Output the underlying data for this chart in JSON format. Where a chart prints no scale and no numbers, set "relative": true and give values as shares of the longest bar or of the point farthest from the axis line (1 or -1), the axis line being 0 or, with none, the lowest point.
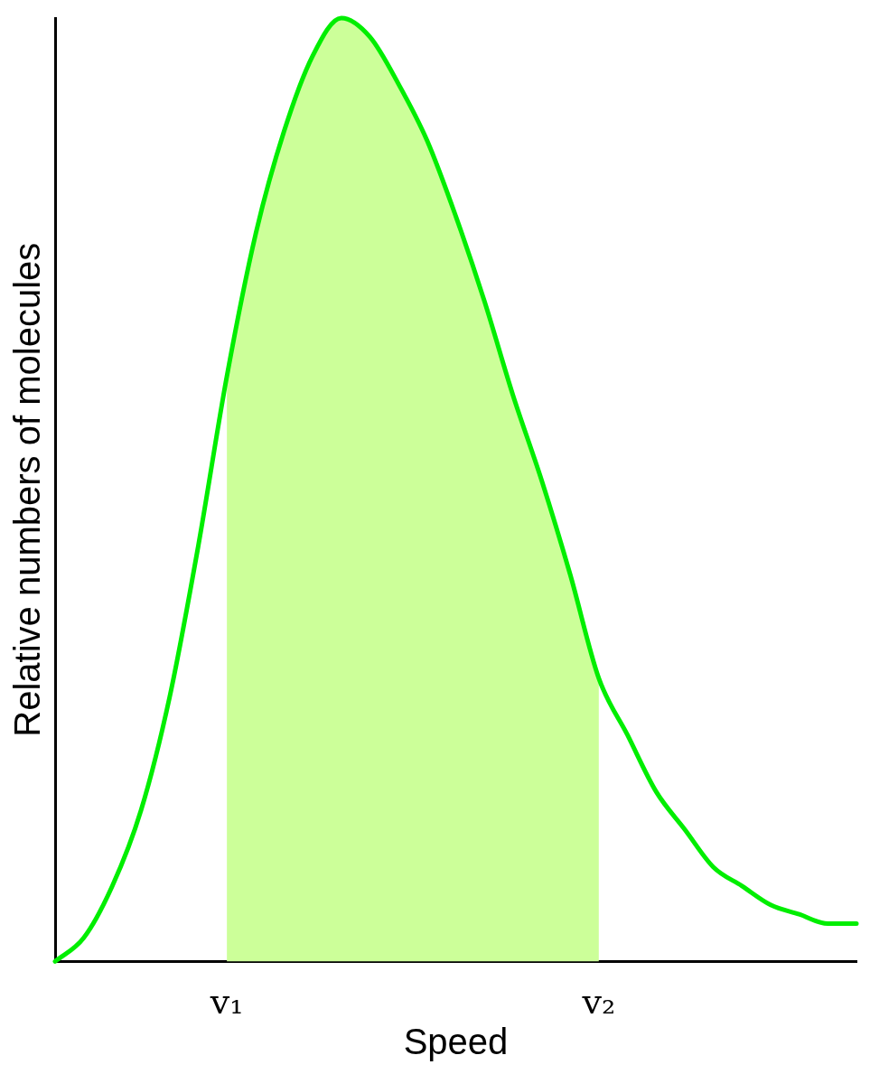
{
  "chart_data": {
    "type": "line",
    "relative": true,
    "xlabel": "Speed",
    "ylabel": "Relative numbers of molecules",
    "categories": [
      null,
      null,
      null,
      null,
      null,
      null,
      "v₁",
      null,
      null,
      null,
      null,
      null,
      null,
      null,
      null,
      null,
      null,
      null,
      null,
      "v₂",
      null,
      null,
      null,
      null,
      null,
      null,
      null,
      null,
      null
    ],
    "series": [
      {
        "type": "area",
        "color": "#ccff99",
        "values": [
          null,
          null,
          null,
          null,
          null,
          null,
          0.62,
          0.77,
          0.88,
          0.96,
          1,
          0.98,
          0.93,
          0.87,
          0.79,
          0.7,
          0.6,
          0.51,
          0.41,
          0.3,
          null,
          null,
          null,
          null,
          null,
          null,
          null,
          null,
          null
        ]
      },
      {
        "type": "line",
        "color": "#00ee00",
        "values": [
          0,
          0.025,
          0.08,
          0.16,
          0.28,
          0.44,
          0.62,
          0.77,
          0.88,
          0.96,
          1,
          0.98,
          0.93,
          0.87,
          0.79,
          0.7,
          0.6,
          0.51,
          0.41,
          0.3,
          0.24,
          0.18,
          0.14,
          0.1,
          0.08,
          0.06,
          0.05,
          0.04,
          0.04
        ]
      }
    ],
    "grid": false,
    "legend": false,
    "marker": "none",
    "line_style": "solid"
  }
}
